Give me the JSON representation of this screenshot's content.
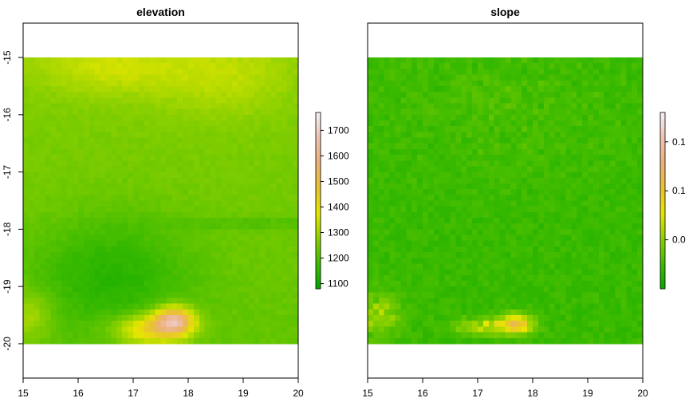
{
  "chart_data": [
    {
      "type": "heatmap",
      "title": "elevation",
      "xlim": [
        15,
        20
      ],
      "ylim": [
        -20.6,
        -14.4
      ],
      "raster_extent": {
        "x": [
          15,
          20
        ],
        "y": [
          -20,
          -15
        ]
      },
      "xticks": [
        15,
        16,
        17,
        18,
        19,
        20
      ],
      "yticks": [
        -15,
        -16,
        -17,
        -18,
        -19,
        -20
      ],
      "colorbar": {
        "min": 1080,
        "max": 1770,
        "ticks": [
          1100,
          1200,
          1300,
          1400,
          1500,
          1600,
          1700
        ]
      },
      "features": [
        {
          "kind": "high",
          "x": 17.7,
          "y": -19.6,
          "value": 1750
        },
        {
          "kind": "high",
          "x": 16.5,
          "y": -15.2,
          "value": 1420
        },
        {
          "kind": "low",
          "x": 16.6,
          "y": -18.8,
          "value": 1090
        }
      ],
      "grid": false
    },
    {
      "type": "heatmap",
      "title": "slope",
      "xlim": [
        15,
        20
      ],
      "ylim": [
        -20.6,
        -14.4
      ],
      "raster_extent": {
        "x": [
          15,
          20
        ],
        "y": [
          -20,
          -15
        ]
      },
      "xticks": [
        15,
        16,
        17,
        18,
        19,
        20
      ],
      "yticks": [],
      "colorbar": {
        "min": 0,
        "max": 0.18,
        "ticks": [
          0.05,
          0.1,
          0.15
        ],
        "tick_labels_visible": [
          "0.0",
          "0.1",
          "0.1"
        ]
      },
      "features": [
        {
          "kind": "high",
          "x": 17.7,
          "y": -19.65,
          "value": 0.18
        },
        {
          "kind": "ridge",
          "x": 15.2,
          "y": -19.5,
          "value": 0.1
        }
      ],
      "grid": false
    }
  ],
  "palette": [
    "#00A600",
    "#3EBB00",
    "#8BD000",
    "#E6E600",
    "#E8C32E",
    "#ECB176",
    "#EFC2B3",
    "#F2F2F2"
  ]
}
